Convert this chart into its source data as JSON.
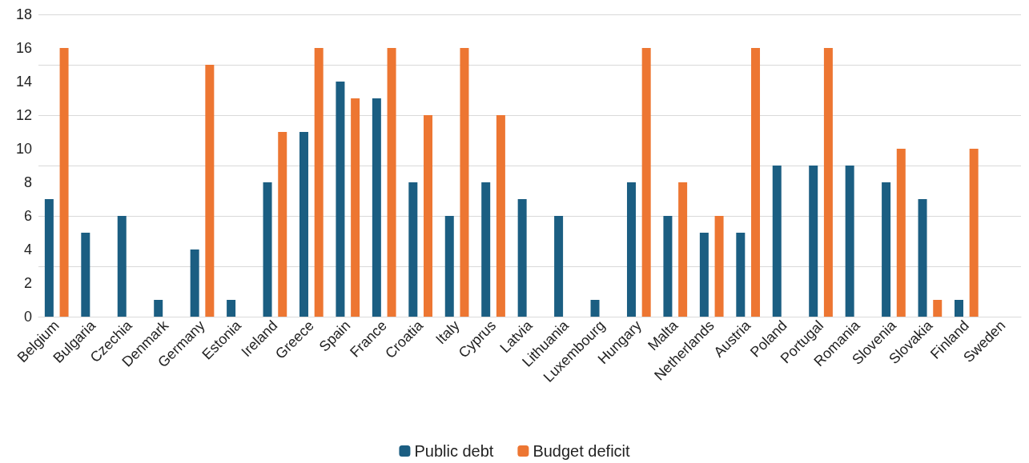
{
  "chart_data": {
    "type": "bar",
    "categories": [
      "Belgium",
      "Bulgaria",
      "Czechia",
      "Denmark",
      "Germany",
      "Estonia",
      "Ireland",
      "Greece",
      "Spain",
      "France",
      "Croatia",
      "Italy",
      "Cyprus",
      "Latvia",
      "Lithuania",
      "Luxembourg",
      "Hungary",
      "Malta",
      "Netherlands",
      "Austria",
      "Poland",
      "Portugal",
      "Romania",
      "Slovenia",
      "Slovakia",
      "Finland",
      "Sweden"
    ],
    "series": [
      {
        "name": "Public debt",
        "color": "#1b5e82",
        "values": [
          7,
          5,
          6,
          1,
          4,
          1,
          8,
          11,
          14,
          13,
          8,
          6,
          8,
          7,
          6,
          1,
          8,
          6,
          5,
          5,
          9,
          9,
          9,
          8,
          7,
          1,
          0
        ]
      },
      {
        "name": "Budget deficit",
        "color": "#ed7632",
        "values": [
          16,
          0,
          0,
          0,
          15,
          0,
          11,
          16,
          13,
          16,
          12,
          16,
          12,
          0,
          0,
          0,
          16,
          8,
          6,
          16,
          0,
          16,
          0,
          10,
          1,
          10,
          0
        ]
      }
    ],
    "ylim": [
      0,
      18
    ],
    "yticks": [
      0,
      2,
      4,
      6,
      8,
      10,
      12,
      14,
      16,
      18
    ],
    "grid": "y",
    "legend": "bottom"
  }
}
